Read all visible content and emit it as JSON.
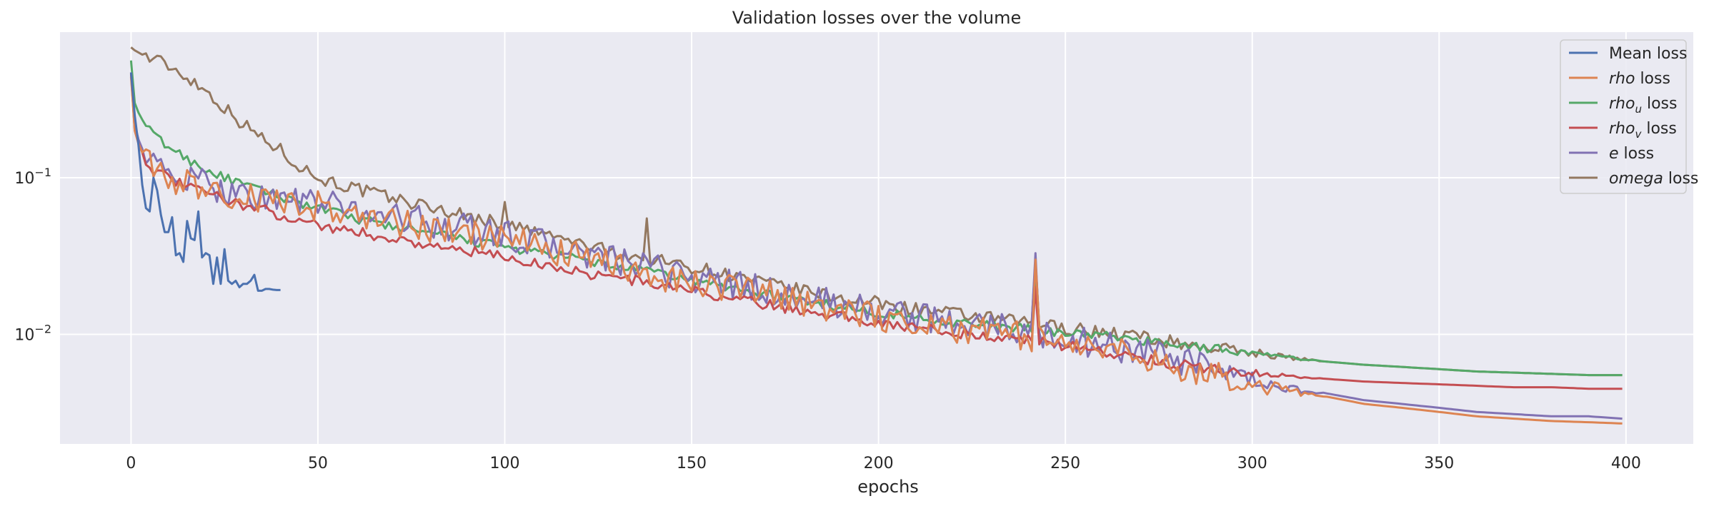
{
  "chart_data": {
    "type": "line",
    "title": "Validation losses over the volume",
    "xlabel": "epochs",
    "ylabel": "",
    "yscale": "log",
    "xlim": [
      -19,
      418
    ],
    "ylim": [
      0.002,
      0.85
    ],
    "xticks": [
      0,
      50,
      100,
      150,
      200,
      250,
      300,
      350,
      400
    ],
    "yticks": [
      {
        "value": 0.1,
        "base": "10",
        "exp": "−1"
      },
      {
        "value": 0.01,
        "base": "10",
        "exp": "−2"
      }
    ],
    "grid": true,
    "legend_position": "top-right",
    "colors": {
      "background": "#eaeaf2",
      "grid": "#ffffff",
      "mean": "#4c72b0",
      "rho": "#dd8452",
      "rho_u": "#55a868",
      "rho_v": "#c44e52",
      "e": "#8172b3",
      "omega": "#937860"
    },
    "series": [
      {
        "key": "mean",
        "name": "Mean loss",
        "legend": {
          "italic": "",
          "sub": "",
          "rest": "Mean loss"
        },
        "x": [
          0,
          1,
          2,
          3,
          4,
          5,
          6,
          7,
          8,
          9,
          10,
          11,
          12,
          13,
          14,
          15,
          16,
          17,
          18,
          19,
          20,
          21,
          22,
          23,
          24,
          25,
          26,
          27,
          28,
          29,
          30,
          31,
          32,
          33,
          34,
          35,
          36,
          37,
          38,
          39,
          40
        ],
        "values": [
          0.47,
          0.25,
          0.16,
          0.09,
          0.064,
          0.061,
          0.1,
          0.083,
          0.058,
          0.045,
          0.045,
          0.056,
          0.032,
          0.033,
          0.029,
          0.053,
          0.041,
          0.04,
          0.061,
          0.031,
          0.033,
          0.032,
          0.021,
          0.031,
          0.021,
          0.035,
          0.022,
          0.021,
          0.022,
          0.02,
          0.021,
          0.021,
          0.022,
          0.024,
          0.019,
          0.019,
          0.0195,
          0.0195,
          0.0193,
          0.0192,
          0.0192
        ]
      },
      {
        "key": "rho",
        "name": "rho loss",
        "legend": {
          "italic": "rho",
          "sub": "",
          "rest": " loss"
        },
        "x": [
          0,
          1,
          2,
          3,
          4,
          5,
          6,
          8,
          10,
          15,
          20,
          25,
          30,
          40,
          50,
          60,
          70,
          80,
          90,
          100,
          110,
          120,
          130,
          140,
          150,
          160,
          170,
          180,
          190,
          200,
          210,
          220,
          230,
          240,
          250,
          260,
          270,
          280,
          290,
          300,
          310,
          320,
          330,
          340,
          350,
          360,
          370,
          380,
          390,
          399
        ],
        "values": [
          0.44,
          0.2,
          0.165,
          0.145,
          0.13,
          0.12,
          0.115,
          0.107,
          0.1,
          0.092,
          0.085,
          0.079,
          0.074,
          0.07,
          0.066,
          0.058,
          0.052,
          0.047,
          0.043,
          0.04,
          0.036,
          0.031,
          0.027,
          0.024,
          0.022,
          0.02,
          0.018,
          0.016,
          0.0145,
          0.013,
          0.012,
          0.011,
          0.0105,
          0.0095,
          0.0088,
          0.008,
          0.0072,
          0.0063,
          0.0055,
          0.0048,
          0.0043,
          0.004,
          0.0036,
          0.0034,
          0.0032,
          0.003,
          0.0029,
          0.0028,
          0.00275,
          0.0027
        ],
        "noise": 0.22,
        "spikes": [
          {
            "x": 242,
            "y": 0.03
          }
        ]
      },
      {
        "key": "rho_u",
        "name": "rho_u loss",
        "legend": {
          "italic": "rho",
          "sub": "u",
          "rest": " loss"
        },
        "x": [
          0,
          1,
          2,
          3,
          4,
          5,
          6,
          8,
          10,
          15,
          20,
          25,
          30,
          40,
          50,
          60,
          70,
          80,
          90,
          100,
          110,
          120,
          130,
          140,
          150,
          160,
          170,
          180,
          190,
          200,
          210,
          220,
          230,
          240,
          250,
          260,
          270,
          280,
          290,
          300,
          310,
          320,
          330,
          340,
          350,
          360,
          370,
          380,
          390,
          399
        ],
        "values": [
          0.56,
          0.3,
          0.26,
          0.235,
          0.215,
          0.2,
          0.19,
          0.172,
          0.158,
          0.132,
          0.113,
          0.1,
          0.09,
          0.076,
          0.064,
          0.055,
          0.049,
          0.044,
          0.04,
          0.036,
          0.033,
          0.03,
          0.027,
          0.025,
          0.022,
          0.02,
          0.018,
          0.0165,
          0.015,
          0.0138,
          0.0128,
          0.012,
          0.0113,
          0.0108,
          0.0103,
          0.0098,
          0.0092,
          0.0086,
          0.0081,
          0.0076,
          0.0071,
          0.0067,
          0.0064,
          0.0062,
          0.006,
          0.0058,
          0.0057,
          0.0056,
          0.0055,
          0.0055
        ],
        "noise": 0.07,
        "spikes": [
          {
            "x": 242,
            "y": 0.026
          }
        ]
      },
      {
        "key": "rho_v",
        "name": "rho_v loss",
        "legend": {
          "italic": "rho",
          "sub": "v",
          "rest": " loss"
        },
        "x": [
          0,
          1,
          2,
          3,
          4,
          5,
          6,
          8,
          10,
          15,
          20,
          25,
          30,
          40,
          50,
          60,
          70,
          80,
          90,
          100,
          110,
          120,
          130,
          140,
          150,
          160,
          170,
          180,
          190,
          200,
          210,
          220,
          230,
          240,
          250,
          260,
          270,
          280,
          290,
          300,
          310,
          320,
          330,
          340,
          350,
          360,
          370,
          380,
          390,
          399
        ],
        "values": [
          0.46,
          0.2,
          0.165,
          0.145,
          0.13,
          0.12,
          0.113,
          0.105,
          0.098,
          0.088,
          0.08,
          0.073,
          0.067,
          0.058,
          0.05,
          0.045,
          0.041,
          0.037,
          0.034,
          0.031,
          0.028,
          0.025,
          0.023,
          0.021,
          0.019,
          0.017,
          0.0155,
          0.0142,
          0.013,
          0.012,
          0.011,
          0.0103,
          0.0097,
          0.0092,
          0.0085,
          0.0078,
          0.0071,
          0.0064,
          0.006,
          0.0057,
          0.0054,
          0.0052,
          0.005,
          0.0049,
          0.0048,
          0.0047,
          0.0046,
          0.0046,
          0.0045,
          0.0045
        ],
        "noise": 0.08,
        "spikes": [
          {
            "x": 242,
            "y": 0.02
          }
        ]
      },
      {
        "key": "e",
        "name": "e loss",
        "legend": {
          "italic": "e",
          "sub": "",
          "rest": " loss"
        },
        "x": [
          0,
          1,
          2,
          3,
          4,
          5,
          6,
          8,
          10,
          15,
          20,
          25,
          30,
          40,
          50,
          60,
          70,
          80,
          90,
          100,
          110,
          120,
          130,
          140,
          150,
          160,
          170,
          180,
          190,
          200,
          210,
          220,
          230,
          240,
          250,
          260,
          270,
          280,
          290,
          300,
          310,
          320,
          330,
          340,
          350,
          360,
          370,
          380,
          390,
          399
        ],
        "values": [
          0.47,
          0.22,
          0.175,
          0.153,
          0.137,
          0.126,
          0.12,
          0.112,
          0.105,
          0.097,
          0.09,
          0.084,
          0.079,
          0.073,
          0.069,
          0.062,
          0.057,
          0.052,
          0.047,
          0.043,
          0.038,
          0.033,
          0.029,
          0.026,
          0.023,
          0.021,
          0.019,
          0.017,
          0.0155,
          0.014,
          0.0128,
          0.012,
          0.0113,
          0.0102,
          0.0094,
          0.0086,
          0.0078,
          0.0068,
          0.0058,
          0.005,
          0.0045,
          0.0042,
          0.0038,
          0.0036,
          0.0034,
          0.0032,
          0.0031,
          0.003,
          0.003,
          0.0029
        ],
        "noise": 0.22,
        "spikes": [
          {
            "x": 242,
            "y": 0.033
          }
        ]
      },
      {
        "key": "omega",
        "name": "omega loss",
        "legend": {
          "italic": "omega",
          "sub": "",
          "rest": " loss"
        },
        "x": [
          0,
          1,
          2,
          3,
          4,
          5,
          6,
          8,
          10,
          15,
          20,
          25,
          30,
          35,
          40,
          45,
          50,
          60,
          70,
          80,
          90,
          100,
          110,
          120,
          130,
          140,
          150,
          160,
          170,
          180,
          190,
          200,
          210,
          220,
          230,
          240,
          250,
          260,
          270,
          280,
          290,
          300,
          310,
          320,
          330,
          340,
          350,
          360,
          370,
          380,
          390,
          399
        ],
        "values": [
          0.68,
          0.65,
          0.63,
          0.61,
          0.6,
          0.58,
          0.57,
          0.55,
          0.52,
          0.44,
          0.36,
          0.28,
          0.22,
          0.18,
          0.15,
          0.12,
          0.1,
          0.085,
          0.074,
          0.065,
          0.057,
          0.05,
          0.044,
          0.038,
          0.033,
          0.03,
          0.027,
          0.024,
          0.021,
          0.019,
          0.017,
          0.0158,
          0.0145,
          0.0135,
          0.0126,
          0.0118,
          0.011,
          0.0103,
          0.0097,
          0.0088,
          0.0082,
          0.0077,
          0.0071,
          0.0067,
          0.0064,
          0.0062,
          0.006,
          0.0058,
          0.0057,
          0.0056,
          0.0055,
          0.0055
        ],
        "noise": 0.1,
        "spikes": [
          {
            "x": 138,
            "y": 0.055
          },
          {
            "x": 100,
            "y": 0.07
          },
          {
            "x": 242,
            "y": 0.03
          }
        ]
      }
    ]
  }
}
